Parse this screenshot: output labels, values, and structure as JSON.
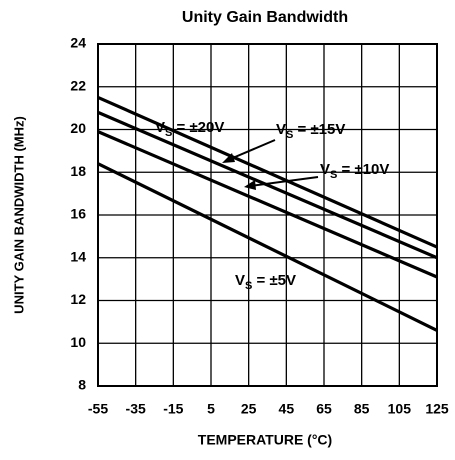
{
  "chart_data": {
    "type": "line",
    "title": "Unity Gain Bandwidth",
    "xlabel": "TEMPERATURE (°C)",
    "ylabel": "UNITY GAIN BANDWIDTH (MHz)",
    "x": [
      -55,
      125
    ],
    "series": [
      {
        "name": "VS = ±20V",
        "color": "#000000",
        "values": [
          21.5,
          14.5
        ]
      },
      {
        "name": "VS = ±15V",
        "color": "#000000",
        "values": [
          20.8,
          14.0
        ]
      },
      {
        "name": "VS = ±10V",
        "color": "#000000",
        "values": [
          19.9,
          13.1
        ]
      },
      {
        "name": "VS = ±5V",
        "color": "#000000",
        "values": [
          18.4,
          10.6
        ]
      }
    ],
    "xlim": [
      -55,
      125
    ],
    "xticks": [
      -55,
      -35,
      -15,
      5,
      25,
      45,
      65,
      85,
      105,
      125
    ],
    "ylim": [
      8,
      24
    ],
    "yticks": [
      8,
      10,
      12,
      14,
      16,
      18,
      20,
      22,
      24
    ],
    "grid": true
  }
}
